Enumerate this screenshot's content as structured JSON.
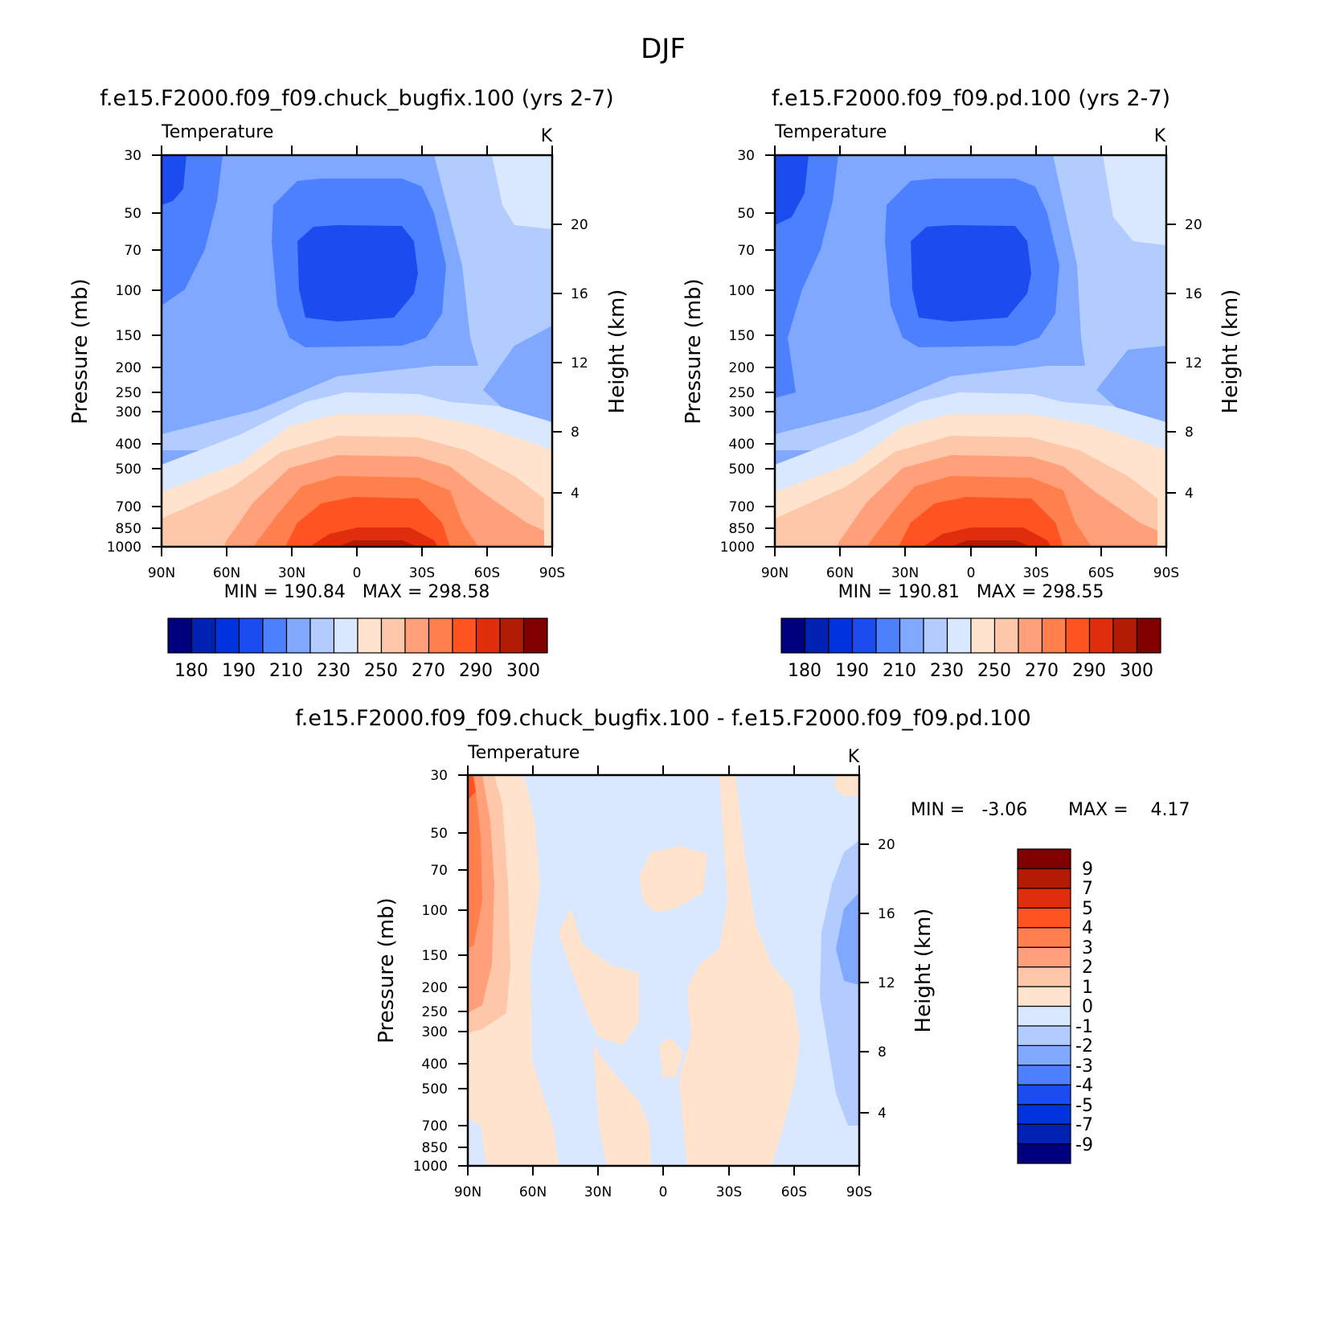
{
  "figure_title": "DJF",
  "colors": {
    "temperature_palette": [
      "#00007f",
      "#0022b2",
      "#0033dd",
      "#1a4cf0",
      "#4d80ff",
      "#80a8ff",
      "#b2ccff",
      "#d9e8ff",
      "#ffe3cc",
      "#ffc7aa",
      "#ffa07a",
      "#ff7f4d",
      "#ff5422",
      "#e02e0c",
      "#b21c05",
      "#800000"
    ],
    "difference_palette": [
      "#00007f",
      "#0022b2",
      "#0033dd",
      "#1a4cf0",
      "#4d80ff",
      "#80a8ff",
      "#b2ccff",
      "#d9e8ff",
      "#ffe3cc",
      "#ffc7aa",
      "#ffa07a",
      "#ff7f4d",
      "#ff5422",
      "#e02e0c",
      "#b21c05",
      "#800000"
    ]
  },
  "chart_data": [
    {
      "type": "heatmap",
      "title": "f.e15.F2000.f09_f09.chuck_bugfix.100 (yrs 2-7)",
      "left_label": "Temperature",
      "right_label": "K",
      "ylabel": "Pressure (mb)",
      "y2label": "Height (km)",
      "x_ticks": [
        "90N",
        "60N",
        "30N",
        "0",
        "30S",
        "60S",
        "90S"
      ],
      "y_ticks": [
        "30",
        "50",
        "70",
        "100",
        "150",
        "200",
        "250",
        "300",
        "400",
        "500",
        "700",
        "850",
        "1000"
      ],
      "y2_ticks": [
        "20",
        "16",
        "12",
        "8",
        "4"
      ],
      "ylim": [
        1000,
        30
      ],
      "y_scale": "log",
      "stats": "MIN = 190.84   MAX = 298.58",
      "min": 190.84,
      "max": 298.58,
      "colorbar_labels": [
        "180",
        "190",
        "210",
        "230",
        "250",
        "270",
        "290",
        "300"
      ],
      "colorbar_orientation": "horizontal"
    },
    {
      "type": "heatmap",
      "title": "f.e15.F2000.f09_f09.pd.100 (yrs 2-7)",
      "left_label": "Temperature",
      "right_label": "K",
      "ylabel": "Pressure (mb)",
      "y2label": "Height (km)",
      "x_ticks": [
        "90N",
        "60N",
        "30N",
        "0",
        "30S",
        "60S",
        "90S"
      ],
      "y_ticks": [
        "30",
        "50",
        "70",
        "100",
        "150",
        "200",
        "250",
        "300",
        "400",
        "500",
        "700",
        "850",
        "1000"
      ],
      "y2_ticks": [
        "20",
        "16",
        "12",
        "8",
        "4"
      ],
      "ylim": [
        1000,
        30
      ],
      "y_scale": "log",
      "stats": "MIN = 190.81   MAX = 298.55",
      "min": 190.81,
      "max": 298.55,
      "colorbar_labels": [
        "180",
        "190",
        "210",
        "230",
        "250",
        "270",
        "290",
        "300"
      ],
      "colorbar_orientation": "horizontal"
    },
    {
      "type": "heatmap",
      "title": "f.e15.F2000.f09_f09.chuck_bugfix.100 - f.e15.F2000.f09_f09.pd.100",
      "left_label": "Temperature",
      "right_label": "K",
      "ylabel": "Pressure (mb)",
      "y2label": "Height (km)",
      "x_ticks": [
        "90N",
        "60N",
        "30N",
        "0",
        "30S",
        "60S",
        "90S"
      ],
      "y_ticks": [
        "30",
        "50",
        "70",
        "100",
        "150",
        "200",
        "250",
        "300",
        "400",
        "500",
        "700",
        "850",
        "1000"
      ],
      "y2_ticks": [
        "20",
        "16",
        "12",
        "8",
        "4"
      ],
      "ylim": [
        1000,
        30
      ],
      "y_scale": "log",
      "stats_min": "MIN =   -3.06",
      "stats_max": "MAX =    4.17",
      "min": -3.06,
      "max": 4.17,
      "colorbar_labels": [
        "9",
        "7",
        "5",
        "4",
        "3",
        "2",
        "1",
        "0",
        "-1",
        "-2",
        "-3",
        "-4",
        "-5",
        "-7",
        "-9"
      ],
      "colorbar_orientation": "vertical"
    }
  ]
}
